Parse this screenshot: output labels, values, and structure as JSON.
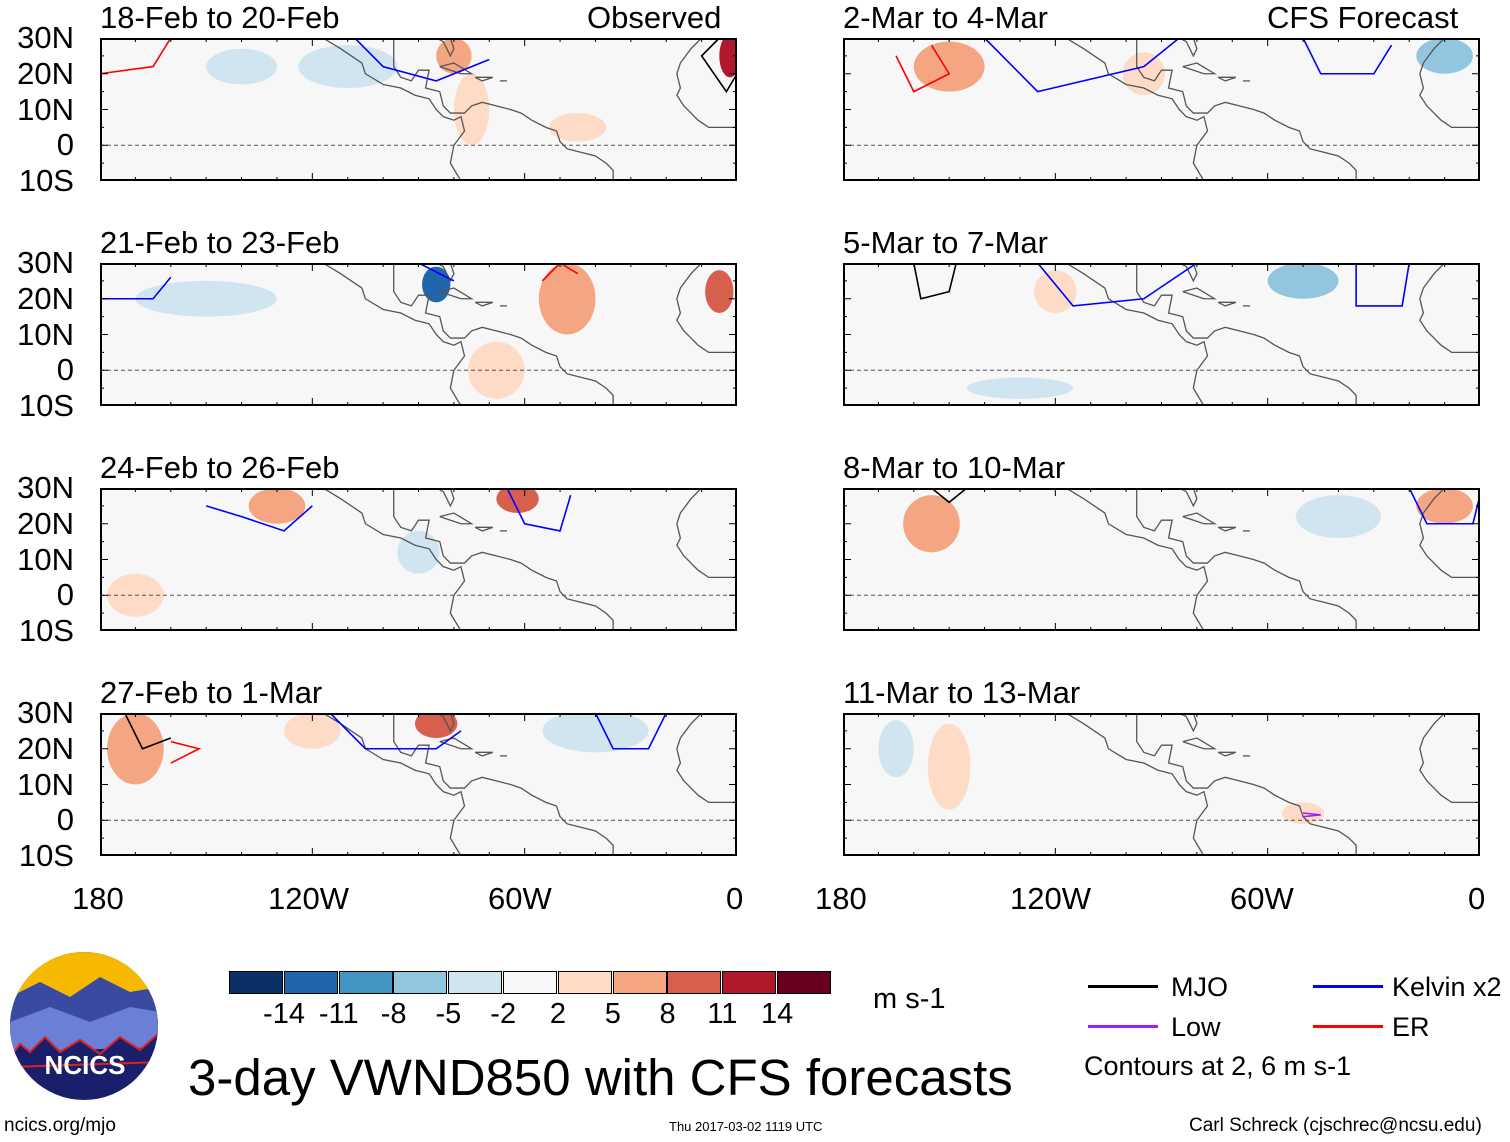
{
  "title": "3-day VWND850 with CFS forecasts",
  "left_header": "Observed",
  "right_header": "CFS Forecast",
  "panels": {
    "left": [
      "18-Feb to 20-Feb",
      "21-Feb to 23-Feb",
      "24-Feb to 26-Feb",
      "27-Feb to 1-Mar"
    ],
    "right": [
      "2-Mar to 4-Mar",
      "5-Mar to 7-Mar",
      "8-Mar to 10-Mar",
      "11-Mar to 13-Mar"
    ]
  },
  "lat_labels": [
    "30N",
    "20N",
    "10N",
    "0",
    "10S"
  ],
  "lon_labels": [
    "180",
    "120W",
    "60W",
    "0"
  ],
  "colorbar": {
    "labels": [
      "-14",
      "-11",
      "-8",
      "-5",
      "-2",
      "2",
      "5",
      "8",
      "11",
      "14"
    ],
    "colors": [
      "#0a3068",
      "#2166ac",
      "#4393c3",
      "#92c5de",
      "#d1e5f0",
      "#f7f7f7",
      "#fddbc7",
      "#f4a582",
      "#d6604d",
      "#b2182b",
      "#67001f"
    ],
    "units": "m s-1"
  },
  "legend": {
    "items": [
      {
        "label": "MJO",
        "color": "#000000"
      },
      {
        "label": "Kelvin x2",
        "color": "#0000ff"
      },
      {
        "label": "Low",
        "color": "#a020f0"
      },
      {
        "label": "ER",
        "color": "#ff0000"
      }
    ],
    "note": "Contours at 2, 6 m s-1"
  },
  "logo_text": "NCICS",
  "footer": {
    "url": "ncics.org/mjo",
    "timestamp": "Thu 2017-03-02 1119 UTC",
    "credit": "Carl Schreck (cjschrec@ncsu.edu)"
  }
}
